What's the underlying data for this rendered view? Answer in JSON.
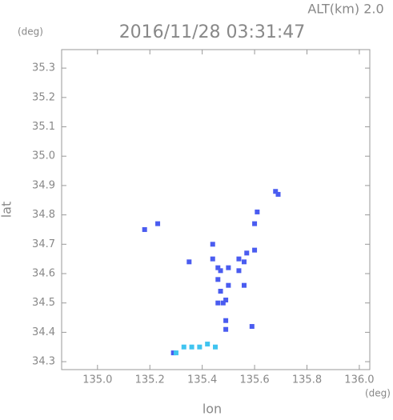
{
  "chart_data": {
    "type": "scatter",
    "annotation": "ALT(km) 2.0",
    "title": "2016/11/28 03:31:47",
    "ylabel": "lat",
    "xlabel": "lon",
    "yunit": "(deg)",
    "xunit": "(deg)",
    "xlim": [
      134.863,
      136.04
    ],
    "ylim": [
      34.273,
      35.363
    ],
    "xticks": [
      {
        "value": 135,
        "label": "135.0"
      },
      135.2,
      135.4,
      135.6,
      135.8,
      {
        "value": 136,
        "label": "136.0"
      }
    ],
    "yticks": [
      34.3,
      34.4,
      34.5,
      34.6,
      34.7,
      34.8,
      34.9,
      {
        "value": 35,
        "label": "35.0"
      },
      35.1,
      35.2,
      35.3
    ],
    "series": [
      {
        "color": "#4a5cf0",
        "x": [
          135.18,
          135.23,
          135.68,
          135.69,
          135.6,
          135.57,
          135.35,
          135.44,
          135.46,
          135.5,
          135.54,
          135.47,
          135.54,
          135.56,
          135.56,
          135.5,
          135.46,
          135.47,
          135.48,
          135.46,
          135.49,
          135.49,
          135.49,
          135.59,
          135.44,
          135.61,
          135.6,
          135.29
        ],
        "y": [
          34.75,
          34.77,
          34.88,
          34.87,
          34.68,
          34.67,
          34.64,
          34.65,
          34.62,
          34.62,
          34.65,
          34.61,
          34.61,
          34.64,
          34.56,
          34.56,
          34.58,
          34.54,
          34.5,
          34.5,
          34.51,
          34.44,
          34.41,
          34.42,
          34.7,
          34.81,
          34.77,
          34.33
        ]
      },
      {
        "color": "#40c4f0",
        "x": [
          135.3,
          135.33,
          135.36,
          135.39,
          135.42,
          135.45
        ],
        "y": [
          34.33,
          34.35,
          34.35,
          34.35,
          34.36,
          34.35
        ]
      }
    ]
  }
}
